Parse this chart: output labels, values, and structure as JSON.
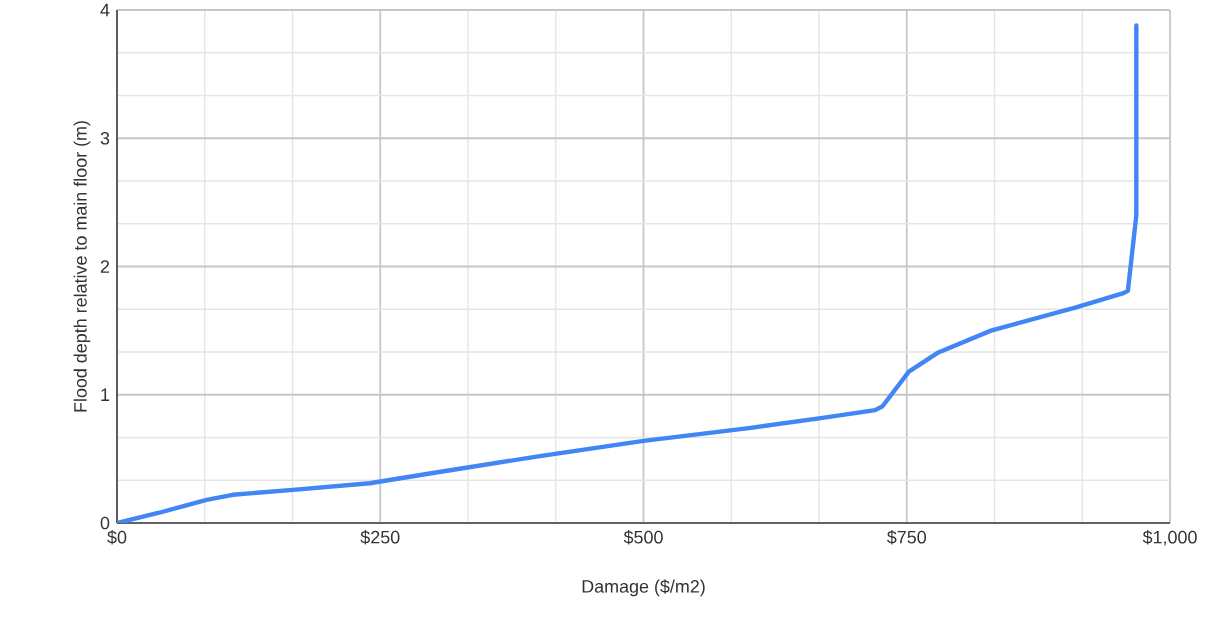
{
  "chart_data": {
    "type": "line",
    "xlabel": "Damage ($/m2)",
    "ylabel": "Flood depth relative to main floor (m)",
    "x": [
      0,
      40,
      85,
      110,
      170,
      240,
      300,
      400,
      500,
      600,
      670,
      720,
      727,
      752,
      780,
      830,
      910,
      955,
      960,
      968,
      968
    ],
    "series": [
      {
        "color": "#4285f4",
        "values": [
          0,
          0.08,
          0.18,
          0.22,
          0.26,
          0.31,
          0.39,
          0.52,
          0.64,
          0.74,
          0.82,
          0.88,
          0.91,
          1.18,
          1.33,
          1.5,
          1.68,
          1.79,
          1.81,
          2.4,
          3.88
        ]
      }
    ],
    "xlim": [
      0,
      1000
    ],
    "ylim": [
      0,
      4
    ],
    "xticks": [
      {
        "value": 0,
        "label": "$0"
      },
      {
        "value": 250,
        "label": "$250"
      },
      {
        "value": 500,
        "label": "$500"
      },
      {
        "value": 750,
        "label": "$750"
      },
      {
        "value": 1000,
        "label": "$1,000"
      }
    ],
    "yticks": [
      0,
      1,
      2,
      3,
      4
    ],
    "grid": true,
    "marker": "none",
    "line_style": "solid"
  }
}
